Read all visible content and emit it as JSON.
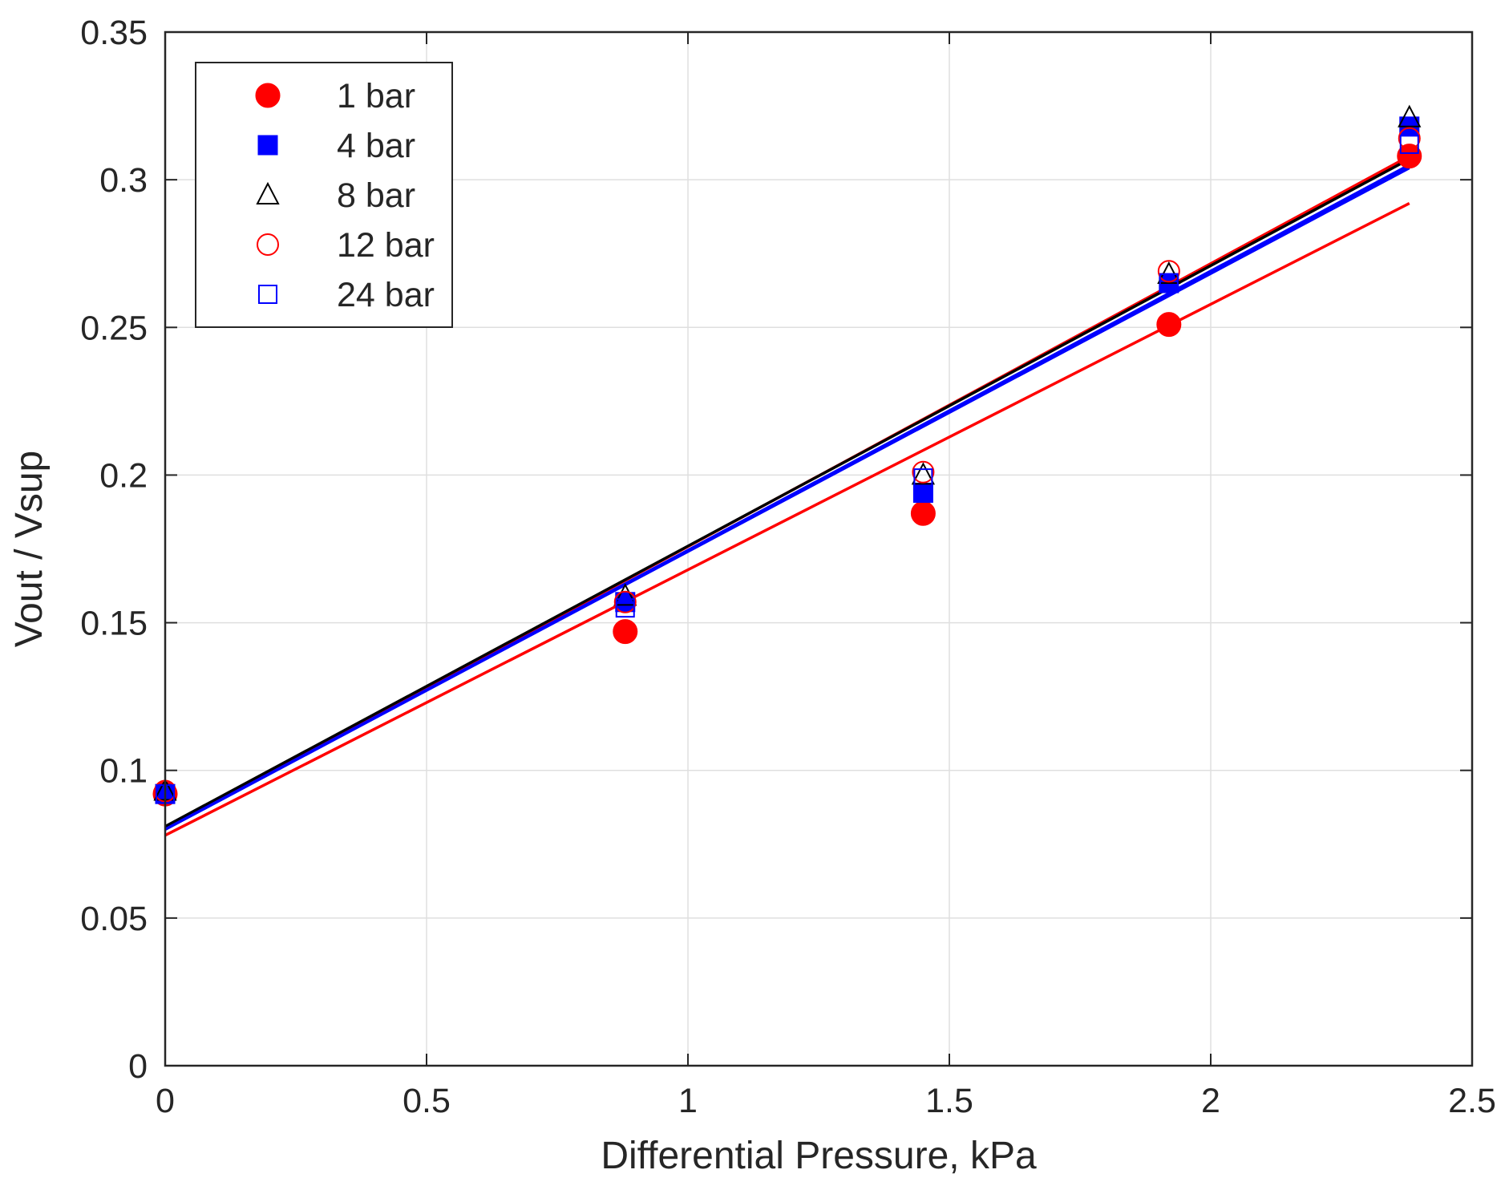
{
  "chart_data": {
    "type": "scatter",
    "title": "",
    "xlabel": "Differential Pressure, kPa",
    "ylabel": "Vout / Vsup",
    "xlim": [
      0,
      2.5
    ],
    "ylim": [
      0,
      0.35
    ],
    "grid": true,
    "legend_position": "top-left",
    "x_ticks": [
      {
        "value": 0,
        "label": "0"
      },
      {
        "value": 0.5,
        "label": "0.5"
      },
      {
        "value": 1,
        "label": "1"
      },
      {
        "value": 1.5,
        "label": "1.5"
      },
      {
        "value": 2,
        "label": "2"
      },
      {
        "value": 2.5,
        "label": "2.5"
      }
    ],
    "y_ticks": [
      {
        "value": 0,
        "label": "0"
      },
      {
        "value": 0.05,
        "label": "0.05"
      },
      {
        "value": 0.1,
        "label": "0.1"
      },
      {
        "value": 0.15,
        "label": "0.15"
      },
      {
        "value": 0.2,
        "label": "0.2"
      },
      {
        "value": 0.25,
        "label": "0.25"
      },
      {
        "value": 0.3,
        "label": "0.3"
      },
      {
        "value": 0.35,
        "label": "0.35"
      }
    ],
    "x": [
      0,
      0.88,
      1.45,
      1.92,
      2.38
    ],
    "series": [
      {
        "name": "1 bar",
        "marker": "filled-circle",
        "color": "#ff0000",
        "values": [
          0.092,
          0.147,
          0.187,
          0.251,
          0.308
        ]
      },
      {
        "name": "4 bar",
        "marker": "filled-square",
        "color": "#0000ff",
        "values": [
          0.092,
          0.157,
          0.194,
          0.265,
          0.318
        ]
      },
      {
        "name": "8 bar",
        "marker": "open-triangle",
        "color": "#000000",
        "values": [
          0.093,
          0.159,
          0.2,
          0.268,
          0.321
        ]
      },
      {
        "name": "12 bar",
        "marker": "open-circle",
        "color": "#ff0000",
        "values": [
          0.093,
          0.157,
          0.201,
          0.269,
          0.314
        ]
      },
      {
        "name": "24 bar",
        "marker": "open-square",
        "color": "#0000ff",
        "values": [
          0.092,
          0.155,
          0.199,
          0.265,
          0.312
        ]
      }
    ],
    "fit_lines": [
      {
        "series": "1 bar",
        "color": "#ff0000",
        "x": [
          0,
          2.38
        ],
        "y": [
          0.078,
          0.292
        ]
      },
      {
        "series": "12 bar",
        "color": "#ff0000",
        "x": [
          0,
          2.38
        ],
        "y": [
          0.08,
          0.308
        ]
      },
      {
        "series": "8 bar",
        "color": "#000000",
        "x": [
          0,
          2.38
        ],
        "y": [
          0.081,
          0.307
        ]
      },
      {
        "series": "24 bar",
        "color": "#0000ff",
        "x": [
          0,
          2.38
        ],
        "y": [
          0.08,
          0.304
        ]
      },
      {
        "series": "4 bar",
        "color": "#0000ff",
        "x": [
          0,
          2.38
        ],
        "y": [
          0.08,
          0.305
        ]
      }
    ]
  }
}
